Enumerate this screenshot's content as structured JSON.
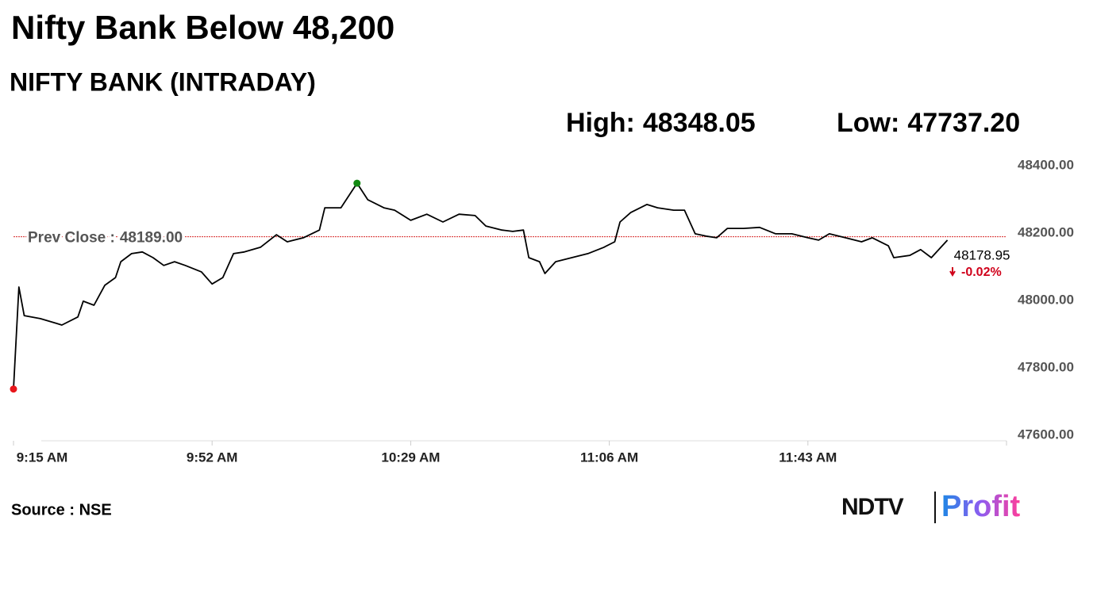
{
  "chart_data": {
    "type": "line",
    "title": "Nifty Bank Below 48,200",
    "subtitle": "NIFTY BANK (INTRADAY)",
    "stats": [
      {
        "label": "High:",
        "value": 48348.05
      },
      {
        "label": "Low:",
        "value": 47737.2,
        "value_label": "47737.20"
      }
    ],
    "prev_close": {
      "label": "Prev Close :",
      "value": 48189,
      "value_label": "48189.00",
      "color": "#d62728"
    },
    "x": [
      "9:15 AM",
      "9:16 AM",
      "9:17 AM",
      "9:20 AM",
      "9:23 AM",
      "9:24 AM",
      "9:27 AM",
      "9:28 AM",
      "9:30 AM",
      "9:32 AM",
      "9:34 AM",
      "9:35 AM",
      "9:37 AM",
      "9:39 AM",
      "9:41 AM",
      "9:43 AM",
      "9:45 AM",
      "9:47 AM",
      "9:50 AM",
      "9:52 AM",
      "9:54 AM",
      "9:56 AM",
      "9:58 AM",
      "10:01 AM",
      "10:04 AM",
      "10:06 AM",
      "10:09 AM",
      "10:12 AM",
      "10:13 AM",
      "10:16 AM",
      "10:19 AM",
      "10:21 AM",
      "10:24 AM",
      "10:26 AM",
      "10:29 AM",
      "10:32 AM",
      "10:35 AM",
      "10:38 AM",
      "10:41 AM",
      "10:43 AM",
      "10:46 AM",
      "10:48 AM",
      "10:50 AM",
      "10:51 AM",
      "10:53 AM",
      "10:54 AM",
      "10:56 AM",
      "10:59 AM",
      "11:02 AM",
      "11:05 AM",
      "11:07 AM",
      "11:08 AM",
      "11:10 AM",
      "11:13 AM",
      "11:15 AM",
      "11:18 AM",
      "11:20 AM",
      "11:22 AM",
      "11:24 AM",
      "11:26 AM",
      "11:28 AM",
      "11:31 AM",
      "11:34 AM",
      "11:37 AM",
      "11:40 AM",
      "11:43 AM",
      "11:45 AM",
      "11:47 AM",
      "11:50 AM",
      "11:53 AM",
      "11:55 AM",
      "11:58 AM",
      "11:59 AM",
      "12:02 PM",
      "12:04 PM",
      "12:06 PM",
      "12:09 PM"
    ],
    "series": [
      {
        "name": "NIFTY BANK",
        "color": "#000000",
        "values": [
          47737.2,
          48040,
          47955,
          47946,
          47932,
          47927,
          47951,
          47998,
          47986,
          48045,
          48068,
          48115,
          48139,
          48144,
          48127,
          48104,
          48115,
          48104,
          48085,
          48049,
          48068,
          48139,
          48144,
          48158,
          48195,
          48174,
          48186,
          48209,
          48275,
          48275,
          48348.05,
          48299,
          48275,
          48268,
          48238,
          48256,
          48233,
          48256,
          48252,
          48221,
          48209,
          48205,
          48209,
          48127,
          48115,
          48080,
          48115,
          48127,
          48139,
          48158,
          48174,
          48233,
          48261,
          48285,
          48275,
          48268,
          48268,
          48198,
          48191,
          48186,
          48214,
          48214,
          48217,
          48198,
          48198,
          48186,
          48179,
          48198,
          48186,
          48174,
          48186,
          48162,
          48127,
          48134,
          48151,
          48127,
          48178.95
        ]
      }
    ],
    "low_marker": {
      "index": 0,
      "color": "#e8161b"
    },
    "high_marker": {
      "index": 30,
      "color": "#138a13"
    },
    "last": 48178.95,
    "change": {
      "value": -0.02,
      "label": "-0.02%",
      "color": "#d0021b"
    },
    "xlim": [
      "9:15 AM",
      "12:20 PM"
    ],
    "xticks": [
      "9:15 AM",
      "9:52 AM",
      "10:29 AM",
      "11:06 AM",
      "11:43 AM"
    ],
    "ylim": [
      47600,
      48400
    ],
    "yticks": [
      {
        "value": 47600,
        "label": "47600.00"
      },
      {
        "value": 47800,
        "label": "47800.00"
      },
      {
        "value": 48000,
        "label": "48000.00"
      },
      {
        "value": 48200,
        "label": "48200.00"
      },
      {
        "value": 48400,
        "label": "48400.00"
      }
    ],
    "source": "Source : NSE",
    "logo": {
      "left": "NDTV",
      "right": "Profit"
    }
  }
}
